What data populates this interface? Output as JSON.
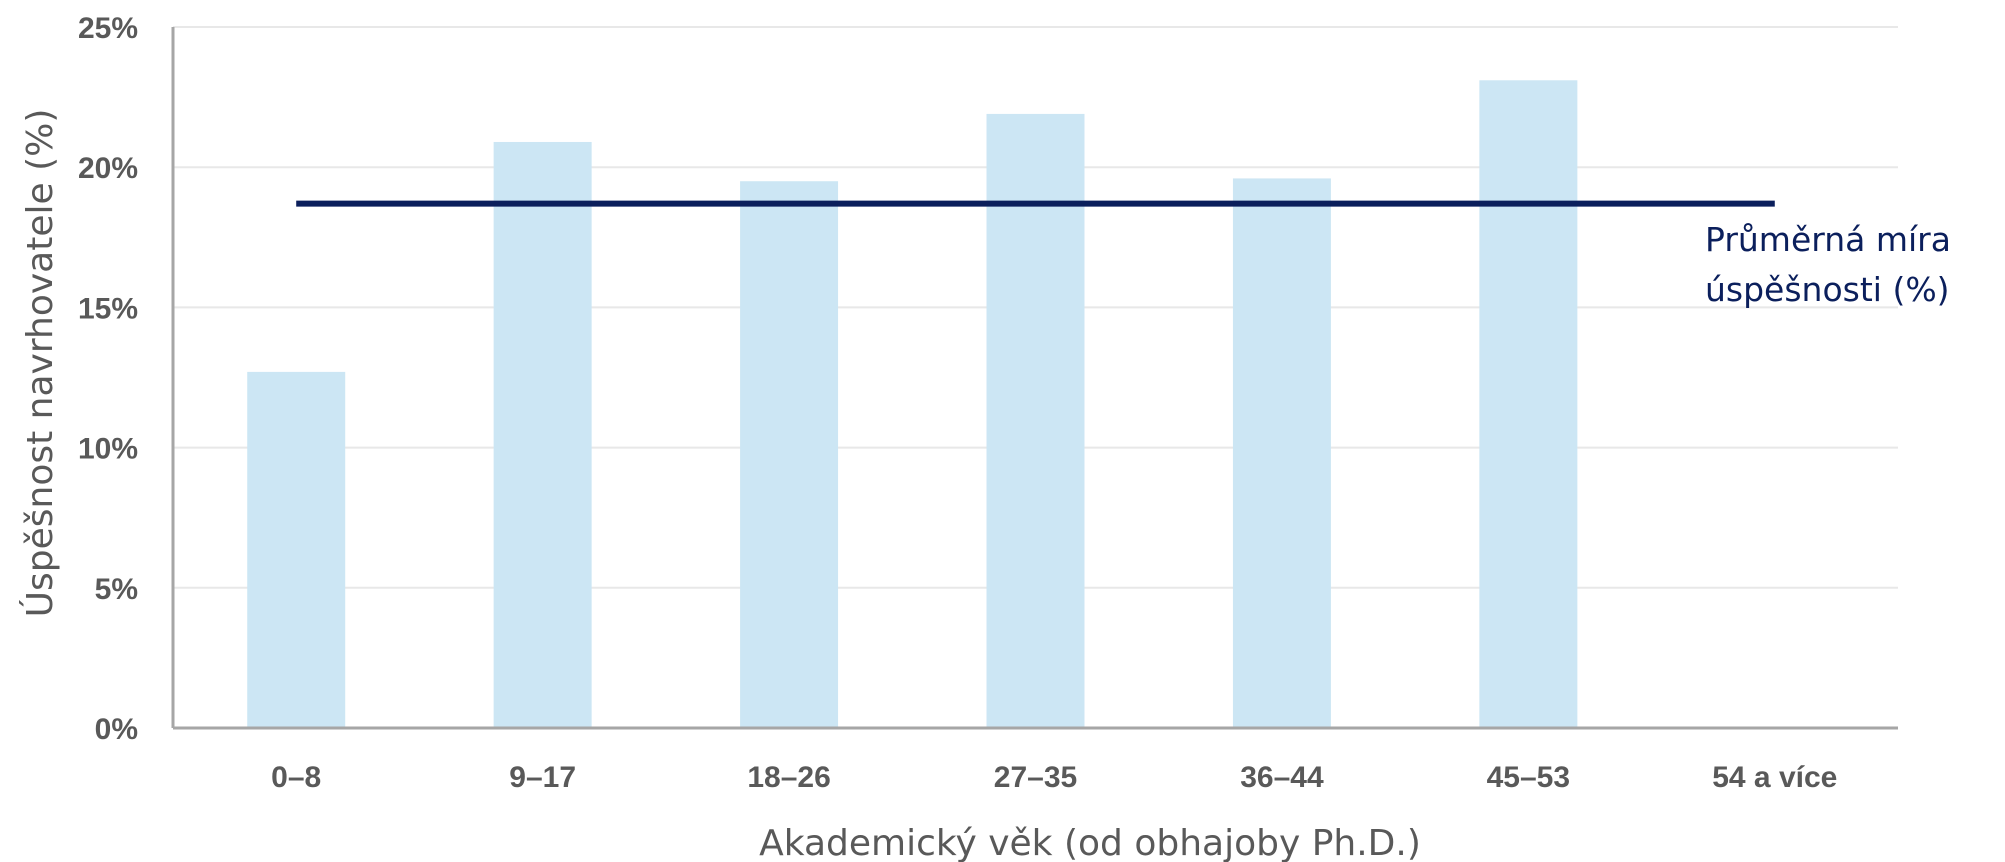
{
  "chart_data": {
    "type": "bar",
    "title": "",
    "xlabel": "Akademický věk (od obhajoby Ph.D.)",
    "ylabel": "Úspěšnost navrhovatele (%)",
    "categories": [
      "0–8",
      "9–17",
      "18–26",
      "27–35",
      "36–44",
      "45–53",
      "54 a více"
    ],
    "series": [
      {
        "values": [
          12.7,
          20.9,
          19.5,
          21.9,
          19.6,
          23.1,
          null
        ]
      }
    ],
    "average_line": {
      "label_line1": "Průměrná míra",
      "label_line2": "úspěšnosti (%)",
      "value": 18.7
    },
    "ylim": [
      0,
      25
    ],
    "yticks": [
      0,
      5,
      10,
      15,
      20,
      25
    ],
    "ytick_labels": [
      "0%",
      "5%",
      "10%",
      "15%",
      "20%",
      "25%"
    ],
    "grid": true,
    "legend": "none",
    "colors": {
      "bar": "#cce6f4",
      "average_line": "#0b1f5c",
      "grid": "#e8e8e8",
      "axis": "#a6a6a6",
      "text": "#595959"
    }
  }
}
